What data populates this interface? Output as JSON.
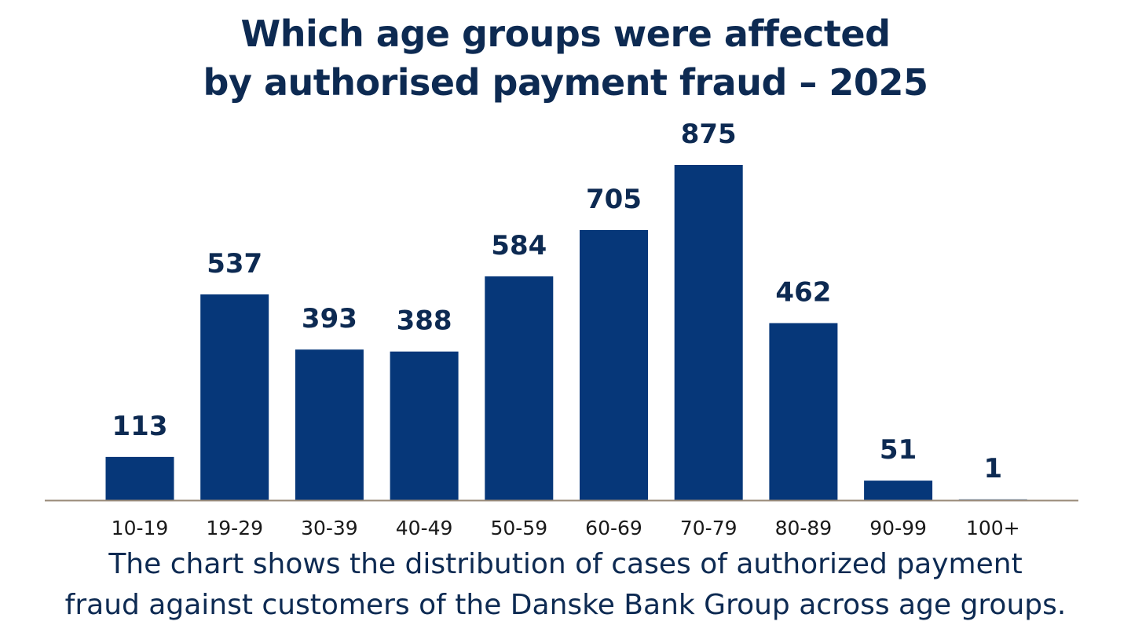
{
  "title": {
    "line1": "Which age groups were affected",
    "line2": "by authorised payment fraud – 2025"
  },
  "caption": {
    "line1": "The chart shows the distribution of cases of authorized payment",
    "line2": "fraud against customers of the Danske Bank Group across age groups."
  },
  "colors": {
    "bar": "#063779",
    "axis": "#9a8a78",
    "text": "#0d2a52"
  },
  "chart_data": {
    "type": "bar",
    "title": "Which age groups were affected by authorised payment fraud – 2025",
    "xlabel": "",
    "ylabel": "",
    "categories": [
      "10-19",
      "19-29",
      "30-39",
      "40-49",
      "50-59",
      "60-69",
      "70-79",
      "80-89",
      "90-99",
      "100+"
    ],
    "values": [
      113,
      537,
      393,
      388,
      584,
      705,
      875,
      462,
      51,
      1
    ],
    "value_labels": [
      "113",
      "537",
      "393",
      "388",
      "584",
      "705",
      "875",
      "462",
      "51",
      "1"
    ],
    "ylim": [
      0,
      875
    ],
    "grid": false,
    "legend": "none"
  }
}
